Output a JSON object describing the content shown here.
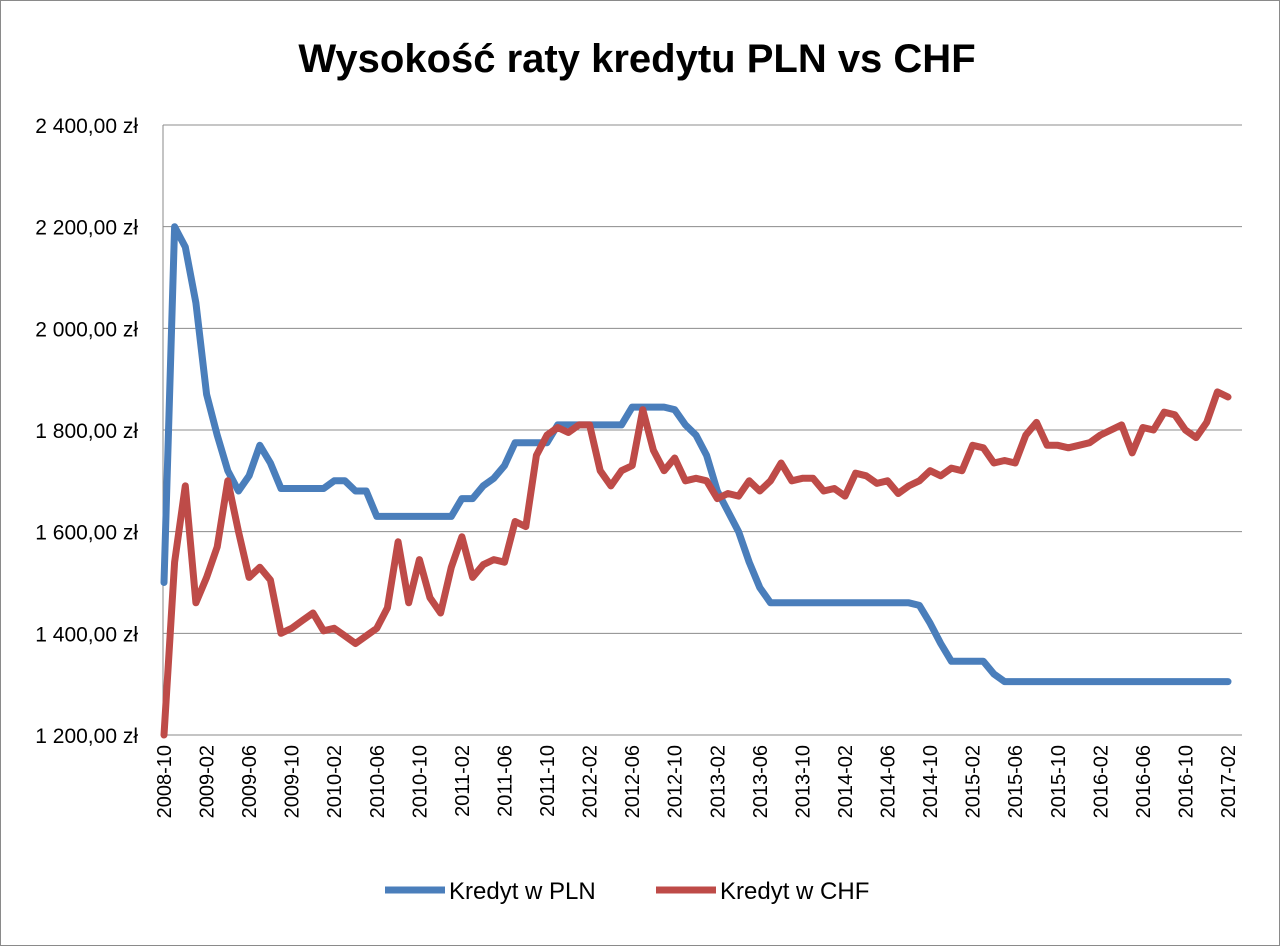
{
  "chart_data": {
    "type": "line",
    "title": "Wysokość raty kredytu PLN vs CHF",
    "xlabel": "",
    "ylabel": "",
    "ylim": [
      1200,
      2400
    ],
    "y_ticks": [
      1200,
      1400,
      1600,
      1800,
      2000,
      2200,
      2400
    ],
    "y_tick_labels": [
      "1 200,00 zł",
      "1 400,00 zł",
      "1 600,00 zł",
      "1 800,00 zł",
      "2 000,00 zł",
      "2 200,00 zł",
      "2 400,00 zł"
    ],
    "grid": true,
    "legend_position": "bottom",
    "x_tick_every": 4,
    "categories": [
      "2008-10",
      "2008-11",
      "2008-12",
      "2009-01",
      "2009-02",
      "2009-03",
      "2009-04",
      "2009-05",
      "2009-06",
      "2009-07",
      "2009-08",
      "2009-09",
      "2009-10",
      "2009-11",
      "2009-12",
      "2010-01",
      "2010-02",
      "2010-03",
      "2010-04",
      "2010-05",
      "2010-06",
      "2010-07",
      "2010-08",
      "2010-09",
      "2010-10",
      "2010-11",
      "2010-12",
      "2011-01",
      "2011-02",
      "2011-03",
      "2011-04",
      "2011-05",
      "2011-06",
      "2011-07",
      "2011-08",
      "2011-09",
      "2011-10",
      "2011-11",
      "2011-12",
      "2012-01",
      "2012-02",
      "2012-03",
      "2012-04",
      "2012-05",
      "2012-06",
      "2012-07",
      "2012-08",
      "2012-09",
      "2012-10",
      "2012-11",
      "2012-12",
      "2013-01",
      "2013-02",
      "2013-03",
      "2013-04",
      "2013-05",
      "2013-06",
      "2013-07",
      "2013-08",
      "2013-09",
      "2013-10",
      "2013-11",
      "2013-12",
      "2014-01",
      "2014-02",
      "2014-03",
      "2014-04",
      "2014-05",
      "2014-06",
      "2014-07",
      "2014-08",
      "2014-09",
      "2014-10",
      "2014-11",
      "2014-12",
      "2015-01",
      "2015-02",
      "2015-03",
      "2015-04",
      "2015-05",
      "2015-06",
      "2015-07",
      "2015-08",
      "2015-09",
      "2015-10",
      "2015-11",
      "2015-12",
      "2016-01",
      "2016-02",
      "2016-03",
      "2016-04",
      "2016-05",
      "2016-06",
      "2016-07",
      "2016-08",
      "2016-09",
      "2016-10",
      "2016-11",
      "2016-12",
      "2017-01",
      "2017-02"
    ],
    "series": [
      {
        "name": "Kredyt w PLN",
        "color": "#4a7ebb",
        "values": [
          1500,
          2200,
          2160,
          2050,
          1870,
          1790,
          1720,
          1680,
          1710,
          1770,
          1735,
          1685,
          1685,
          1685,
          1685,
          1685,
          1700,
          1700,
          1680,
          1680,
          1630,
          1630,
          1630,
          1630,
          1630,
          1630,
          1630,
          1630,
          1665,
          1665,
          1690,
          1705,
          1730,
          1775,
          1775,
          1775,
          1775,
          1810,
          1810,
          1810,
          1810,
          1810,
          1810,
          1810,
          1845,
          1845,
          1845,
          1845,
          1840,
          1810,
          1790,
          1750,
          1680,
          1640,
          1600,
          1540,
          1490,
          1460,
          1460,
          1460,
          1460,
          1460,
          1460,
          1460,
          1460,
          1460,
          1460,
          1460,
          1460,
          1460,
          1460,
          1455,
          1420,
          1380,
          1345,
          1345,
          1345,
          1345,
          1320,
          1305,
          1305,
          1305,
          1305,
          1305,
          1305,
          1305,
          1305,
          1305,
          1305,
          1305,
          1305,
          1305,
          1305,
          1305,
          1305,
          1305,
          1305,
          1305,
          1305,
          1305,
          1305
        ]
      },
      {
        "name": "Kredyt w CHF",
        "color": "#be4b48",
        "values": [
          1200,
          1540,
          1690,
          1460,
          1510,
          1570,
          1700,
          1600,
          1510,
          1530,
          1505,
          1400,
          1410,
          1425,
          1440,
          1405,
          1410,
          1395,
          1380,
          1395,
          1410,
          1450,
          1580,
          1460,
          1545,
          1470,
          1440,
          1530,
          1590,
          1510,
          1535,
          1545,
          1540,
          1620,
          1610,
          1750,
          1790,
          1805,
          1795,
          1810,
          1810,
          1720,
          1690,
          1720,
          1730,
          1840,
          1760,
          1720,
          1745,
          1700,
          1705,
          1700,
          1665,
          1675,
          1670,
          1700,
          1680,
          1700,
          1735,
          1700,
          1705,
          1705,
          1680,
          1685,
          1670,
          1715,
          1710,
          1695,
          1700,
          1675,
          1690,
          1700,
          1720,
          1710,
          1725,
          1720,
          1770,
          1765,
          1735,
          1740,
          1735,
          1790,
          1815,
          1770,
          1770,
          1765,
          1770,
          1775,
          1790,
          1800,
          1810,
          1755,
          1805,
          1800,
          1835,
          1830,
          1800,
          1785,
          1815,
          1875,
          1865
        ]
      }
    ]
  }
}
